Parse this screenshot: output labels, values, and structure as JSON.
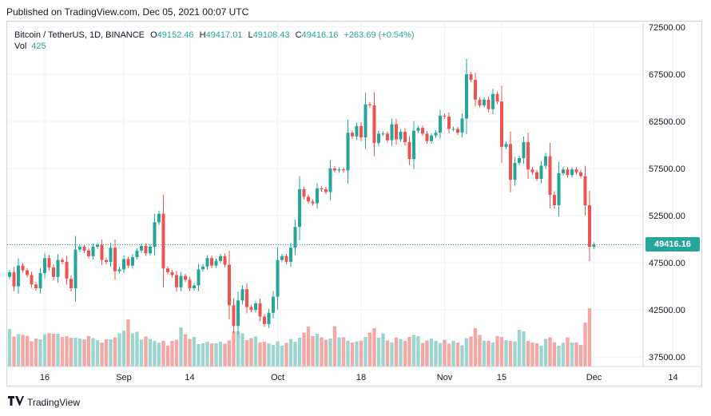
{
  "header": {
    "published": "Published on TradingView.com, Dec 05, 2021 00:07 UTC"
  },
  "legend": {
    "symbol": "Bitcoin / TetherUS, 1D, BINANCE",
    "open_label": "O",
    "open": "49152.46",
    "high_label": "H",
    "high": "49417.01",
    "low_label": "L",
    "low": "49108.43",
    "close_label": "C",
    "close": "49416.16",
    "change": "+263.69 (+0.54%)",
    "vol_label": "Vol",
    "vol": "425"
  },
  "last_price_label": "49416.16",
  "footer": {
    "brand": "TradingView",
    "logo_icon": "tradingview-logo-icon"
  },
  "colors": {
    "up": "#26a69a",
    "down": "#ef5350",
    "up_vol": "#9fd5cf",
    "down_vol": "#f2a9a6"
  },
  "chart_data": {
    "type": "candlestick",
    "y_ticks": [
      "72500.00",
      "67500.00",
      "62500.00",
      "57500.00",
      "52500.00",
      "47500.00",
      "42500.00",
      "37500.00"
    ],
    "x_ticks": [
      "16",
      "Sep",
      "14",
      "Oct",
      "18",
      "Nov",
      "15",
      "Dec",
      "14"
    ],
    "ylim": [
      36500,
      73000
    ],
    "last_price": 49416.16,
    "series": [
      {
        "name": "Bitcoin / TetherUS",
        "close": [
          46500,
          45000,
          47200,
          46700,
          46200,
          45200,
          44800,
          46400,
          48000,
          47000,
          46000,
          47800,
          47600,
          45800,
          44800,
          48900,
          49200,
          48800,
          48200,
          49200,
          49400,
          47800,
          47600,
          49100,
          46600,
          46800,
          47900,
          47200,
          48100,
          48800,
          49300,
          48500,
          49200,
          51800,
          52700,
          46900,
          46500,
          46200,
          44900,
          46100,
          45700,
          44800,
          45100,
          46800,
          47100,
          48000,
          47200,
          47700,
          48200,
          47300,
          43000,
          40800,
          43500,
          44700,
          42800,
          42500,
          43200,
          41800,
          41000,
          42200,
          43900,
          47800,
          48200,
          47600,
          49100,
          51300,
          55300,
          54500,
          54000,
          53800,
          55400,
          55300,
          55000,
          57500,
          57300,
          57400,
          57300,
          61300,
          60900,
          62000,
          60800,
          64300,
          64200,
          60200,
          61200,
          61200,
          60500,
          62200,
          60600,
          61400,
          60300,
          58500,
          61500,
          61800,
          61200,
          60400,
          61000,
          61300,
          63100,
          63000,
          61700,
          61700,
          61300,
          62800,
          67500,
          66900,
          64800,
          64200,
          64800,
          63800,
          65400,
          64600,
          59800,
          60100,
          56300,
          58100,
          58600,
          60300,
          57400,
          57100,
          56400,
          57800,
          58800,
          54700,
          53600,
          57000,
          57400,
          56800,
          57400,
          57100,
          56700,
          53600,
          49200,
          49416
        ]
      }
    ],
    "volume": {
      "values": [
        94,
        75,
        81,
        79,
        77,
        63,
        70,
        68,
        81,
        83,
        82,
        82,
        74,
        76,
        72,
        72,
        70,
        68,
        76,
        71,
        66,
        60,
        68,
        68,
        73,
        83,
        90,
        118,
        83,
        87,
        67,
        75,
        69,
        64,
        60,
        64,
        52,
        64,
        67,
        98,
        81,
        69,
        74,
        56,
        58,
        62,
        58,
        58,
        62,
        57,
        65,
        88,
        88,
        83,
        66,
        71,
        75,
        60,
        62,
        58,
        54,
        63,
        52,
        59,
        69,
        62,
        72,
        85,
        100,
        76,
        82,
        73,
        67,
        70,
        101,
        73,
        73,
        65,
        60,
        63,
        65,
        74,
        85,
        96,
        72,
        83,
        65,
        60,
        73,
        69,
        64,
        74,
        79,
        76,
        59,
        65,
        70,
        64,
        59,
        67,
        57,
        64,
        60,
        53,
        71,
        75,
        96,
        79,
        65,
        64,
        60,
        76,
        74,
        66,
        64,
        63,
        92,
        88,
        64,
        60,
        58,
        52,
        69,
        73,
        61,
        52,
        59,
        73,
        60,
        60,
        54,
        110,
        146,
        1
      ]
    }
  }
}
